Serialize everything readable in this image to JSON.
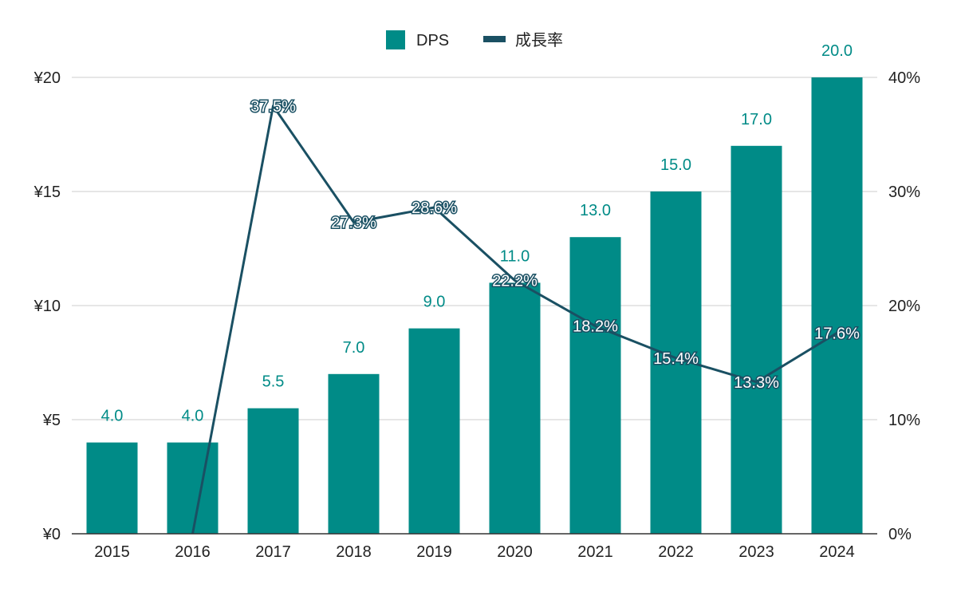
{
  "chart_data": {
    "type": "bar",
    "categories": [
      "2015",
      "2016",
      "2017",
      "2018",
      "2019",
      "2020",
      "2021",
      "2022",
      "2023",
      "2024"
    ],
    "series": [
      {
        "name": "DPS",
        "type": "bar",
        "axis": "left",
        "values": [
          4.0,
          4.0,
          5.5,
          7.0,
          9.0,
          11.0,
          13.0,
          15.0,
          17.0,
          20.0
        ],
        "labels": [
          "4.0",
          "4.0",
          "5.5",
          "7.0",
          "9.0",
          "11.0",
          "13.0",
          "15.0",
          "17.0",
          "20.0"
        ]
      },
      {
        "name": "成長率",
        "type": "line",
        "axis": "right",
        "values": [
          null,
          0.0,
          37.5,
          27.3,
          28.6,
          22.2,
          18.2,
          15.4,
          13.3,
          17.6
        ],
        "labels": [
          "",
          "",
          "37.5%",
          "27.3%",
          "28.6%",
          "22.2%",
          "18.2%",
          "15.4%",
          "13.3%",
          "17.6%"
        ]
      }
    ],
    "y_left": {
      "min": 0,
      "max": 20,
      "ticks": [
        "¥0",
        "¥5",
        "¥10",
        "¥15",
        "¥20"
      ]
    },
    "y_right": {
      "min": 0,
      "max": 40,
      "ticks": [
        "0%",
        "10%",
        "20%",
        "30%",
        "40%"
      ]
    },
    "grid": true,
    "legend_position": "top-center",
    "colors": {
      "bar": "#008b87",
      "line": "#1a5063",
      "grid": "#cccccc",
      "axis": "#333333"
    }
  }
}
